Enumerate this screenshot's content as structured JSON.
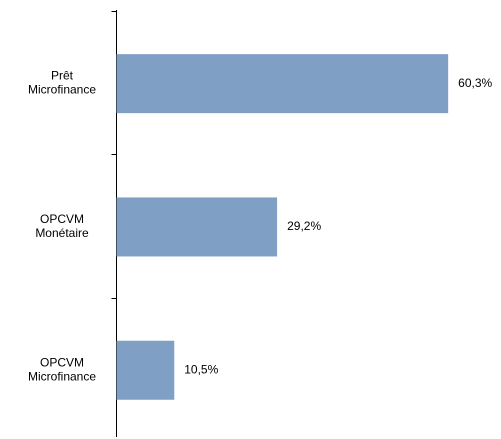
{
  "chart_data": {
    "type": "barh",
    "categories": [
      "Prêt\nMicrofinance",
      "OPCVM\nMonétaire",
      "OPCVM\nMicrofinance"
    ],
    "values": [
      60.3,
      29.2,
      10.5
    ],
    "value_labels": [
      "60,3%",
      "29,2%",
      "10,5%"
    ],
    "color": "#7f9fc5"
  }
}
